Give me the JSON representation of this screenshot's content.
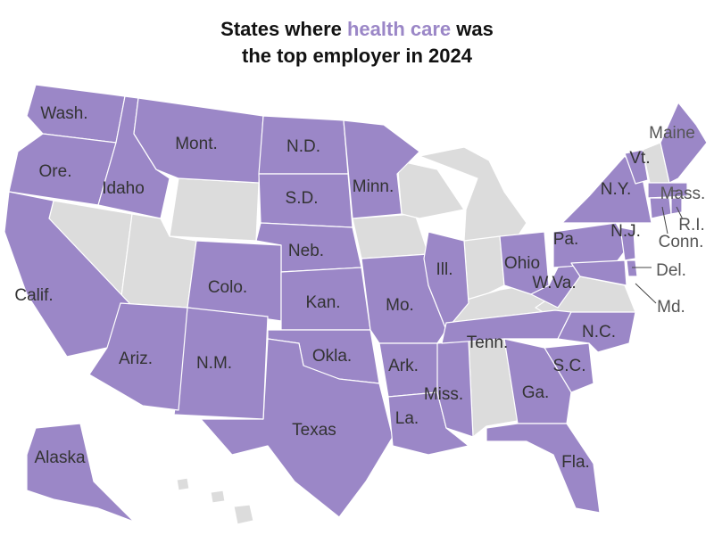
{
  "title": {
    "before": "States where ",
    "highlight": "health care",
    "after": " was",
    "line2": "the top employer in 2024"
  },
  "colors": {
    "health_care": "#9b87c7",
    "other": "#dcdcdc"
  },
  "labels": [
    {
      "text": "Wash.",
      "health_care_top": true
    },
    {
      "text": "Ore.",
      "health_care_top": true
    },
    {
      "text": "Calif.",
      "health_care_top": true
    },
    {
      "text": "Idaho",
      "health_care_top": true
    },
    {
      "text": "Mont.",
      "health_care_top": true
    },
    {
      "text": "N.D.",
      "health_care_top": true
    },
    {
      "text": "S.D.",
      "health_care_top": true
    },
    {
      "text": "Neb.",
      "health_care_top": true
    },
    {
      "text": "Colo.",
      "health_care_top": true
    },
    {
      "text": "Kan.",
      "health_care_top": true
    },
    {
      "text": "Okla.",
      "health_care_top": true
    },
    {
      "text": "Texas",
      "health_care_top": true
    },
    {
      "text": "N.M.",
      "health_care_top": true
    },
    {
      "text": "Ariz.",
      "health_care_top": true
    },
    {
      "text": "Minn.",
      "health_care_top": true
    },
    {
      "text": "Mo.",
      "health_care_top": true
    },
    {
      "text": "Ark.",
      "health_care_top": true
    },
    {
      "text": "La.",
      "health_care_top": true
    },
    {
      "text": "Miss.",
      "health_care_top": true
    },
    {
      "text": "Ill.",
      "health_care_top": true
    },
    {
      "text": "Tenn.",
      "health_care_top": true
    },
    {
      "text": "Ohio",
      "health_care_top": true
    },
    {
      "text": "W.Va.",
      "health_care_top": true
    },
    {
      "text": "N.C.",
      "health_care_top": true
    },
    {
      "text": "S.C.",
      "health_care_top": true
    },
    {
      "text": "Ga.",
      "health_care_top": true
    },
    {
      "text": "Fla.",
      "health_care_top": true
    },
    {
      "text": "Pa.",
      "health_care_top": true
    },
    {
      "text": "N.Y.",
      "health_care_top": true
    },
    {
      "text": "N.J.",
      "health_care_top": true
    },
    {
      "text": "Md.",
      "health_care_top": true
    },
    {
      "text": "Del.",
      "health_care_top": true
    },
    {
      "text": "Vt.",
      "health_care_top": true
    },
    {
      "text": "Maine",
      "health_care_top": true
    },
    {
      "text": "Mass.",
      "health_care_top": true
    },
    {
      "text": "Conn.",
      "health_care_top": true
    },
    {
      "text": "R.I.",
      "health_care_top": true
    },
    {
      "text": "Alaska",
      "health_care_top": true
    }
  ]
}
